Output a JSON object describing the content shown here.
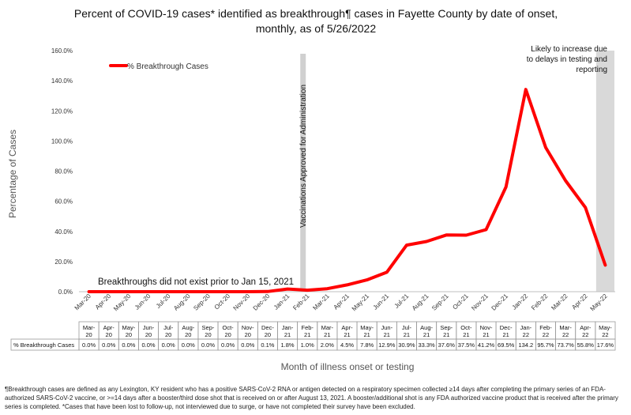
{
  "chart_data": {
    "type": "line",
    "title": "Percent of COVID-19 cases* identified as breakthrough¶ cases in Fayette County by date of onset, monthly, as of 5/26/2022",
    "xlabel": "Month of illness onset or testing",
    "ylabel": "Percentage of Cases",
    "ylim": [
      0,
      160
    ],
    "yticks": [
      "0.0%",
      "20.0%",
      "40.0%",
      "60.0%",
      "80.0%",
      "100.0%",
      "120.0%",
      "140.0%",
      "160.0%"
    ],
    "grid": false,
    "legend_position": "top-left",
    "categories": [
      "Mar-20",
      "Apr-20",
      "May-20",
      "Jun-20",
      "Jul-20",
      "Aug-20",
      "Sep-20",
      "Oct-20",
      "Nov-20",
      "Dec-20",
      "Jan-21",
      "Feb-21",
      "Mar-21",
      "Apr-21",
      "May-21",
      "Jun-21",
      "Jul-21",
      "Aug-21",
      "Sep-21",
      "Oct-21",
      "Nov-21",
      "Dec-21",
      "Jan-22",
      "Feb-22",
      "Mar-22",
      "Apr-22",
      "May-22"
    ],
    "table_labels": [
      "Mar-\n20",
      "Apr-\n20",
      "May-\n20",
      "Jun-\n20",
      "Jul-\n20",
      "Aug-\n20",
      "Sep-\n20",
      "Oct-\n20",
      "Nov-\n20",
      "Dec-\n20",
      "Jan-\n21",
      "Feb-\n21",
      "Mar-\n21",
      "Apr-\n21",
      "May-\n21",
      "Jun-\n21",
      "Jul-\n21",
      "Aug-\n21",
      "Sep-\n21",
      "Oct-\n21",
      "Nov-\n21",
      "Dec-\n21",
      "Jan-\n22",
      "Feb-\n22",
      "Mar-\n22",
      "Apr-\n22",
      "May-\n22"
    ],
    "series": [
      {
        "name": "% Breakthrough Cases",
        "color": "#ff0000",
        "values": [
          0.0,
          0.0,
          0.0,
          0.0,
          0.0,
          0.0,
          0.0,
          0.0,
          0.0,
          0.1,
          1.8,
          1.0,
          2.0,
          4.5,
          7.8,
          12.9,
          30.9,
          33.3,
          37.6,
          37.5,
          41.2,
          69.5,
          134.2,
          95.7,
          73.7,
          55.8,
          17.6
        ],
        "table_values": [
          "0.0%",
          "0.0%",
          "0.0%",
          "0.0%",
          "0.0%",
          "0.0%",
          "0.0%",
          "0.0%",
          "0.0%",
          "0.1%",
          "1.8%",
          "1.0%",
          "2.0%",
          "4.5%",
          "7.8%",
          "12.9%",
          "30.9%",
          "33.3%",
          "37.6%",
          "37.5%",
          "41.2%",
          "69.5%",
          "134.2",
          "95.7%",
          "73.7%",
          "55.8%",
          "17.6%"
        ]
      }
    ],
    "annotations": {
      "vaccine_line": {
        "at": "Feb-21",
        "text": "Vaccinations Approved for Administration"
      },
      "shaded_region": {
        "at": "May-22",
        "text": "Likely to increase due to delays in testing and reporting"
      },
      "note": "Breakthroughs did not exist prior to Jan 15, 2021"
    }
  },
  "footnote": "¶Breakthrough cases are defined as any Lexington, KY resident who has a positive SARS-CoV-2 RNA or antigen detected on a respiratory specimen collected ≥14 days after completing the primary series of an FDA-authorized SARS-CoV-2 vaccine, or >=14 days after a booster/third dose shot that is received on or after August 13, 2021.  A booster/additional shot is any FDA authorized vaccine product that is received after the primary series is completed. *Cases that have been lost to follow-up, not interviewed due to surge, or have not completed their survey have been excluded."
}
